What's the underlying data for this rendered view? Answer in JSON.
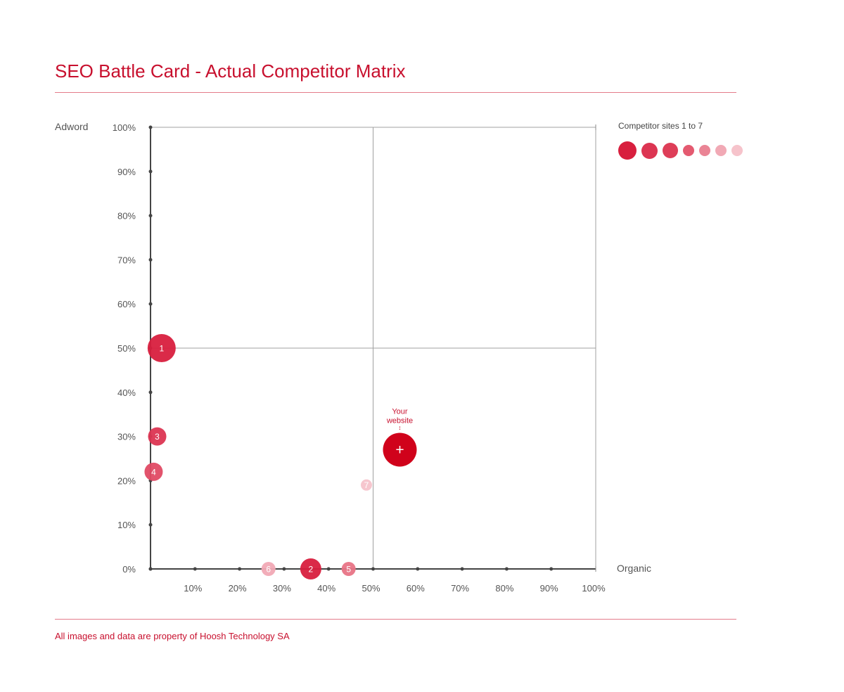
{
  "header": {
    "title": "SEO Battle Card - Actual Competitor Matrix"
  },
  "footer": {
    "text": "All images and data are property of Hoosh Technology SA"
  },
  "legend": {
    "title": "Competitor sites 1 to 7",
    "colors": [
      "#d81f3e",
      "#dc3552",
      "#de3e58",
      "#e45a70",
      "#ea8495",
      "#f1a9b5",
      "#f6c3cb"
    ]
  },
  "chart_data": {
    "type": "scatter",
    "title": "SEO Battle Card - Actual Competitor Matrix",
    "xlabel": "Organic",
    "ylabel": "Adword",
    "xlim": [
      0,
      100
    ],
    "ylim": [
      0,
      100
    ],
    "quadrant_lines": {
      "x": 50,
      "y": 50
    },
    "x_ticks": [
      "10%",
      "20%",
      "30%",
      "40%",
      "50%",
      "60%",
      "70%",
      "80%",
      "90%",
      "100%"
    ],
    "y_ticks": [
      "0%",
      "10%",
      "20%",
      "30%",
      "40%",
      "50%",
      "60%",
      "70%",
      "80%",
      "90%",
      "100%"
    ],
    "points": [
      {
        "label": "1",
        "x": 2.5,
        "y": 50,
        "size": 5,
        "color": "#d81f3e"
      },
      {
        "label": "2",
        "x": 36,
        "y": 0,
        "size": 4,
        "color": "#d81f3e"
      },
      {
        "label": "3",
        "x": 1.5,
        "y": 30,
        "size": 3,
        "color": "#dc3552"
      },
      {
        "label": "4",
        "x": 0.7,
        "y": 22,
        "size": 3,
        "color": "#e04a64"
      },
      {
        "label": "5",
        "x": 44.5,
        "y": 0,
        "size": 2,
        "color": "#e87486"
      },
      {
        "label": "6",
        "x": 26.5,
        "y": 0,
        "size": 2,
        "color": "#f1a9b5"
      },
      {
        "label": "7",
        "x": 48.5,
        "y": 19,
        "size": 1,
        "color": "#f6c3cb"
      }
    ],
    "own_site": {
      "label": "Your website",
      "marker": "+",
      "x": 56,
      "y": 27,
      "color": "#d0021b"
    }
  }
}
